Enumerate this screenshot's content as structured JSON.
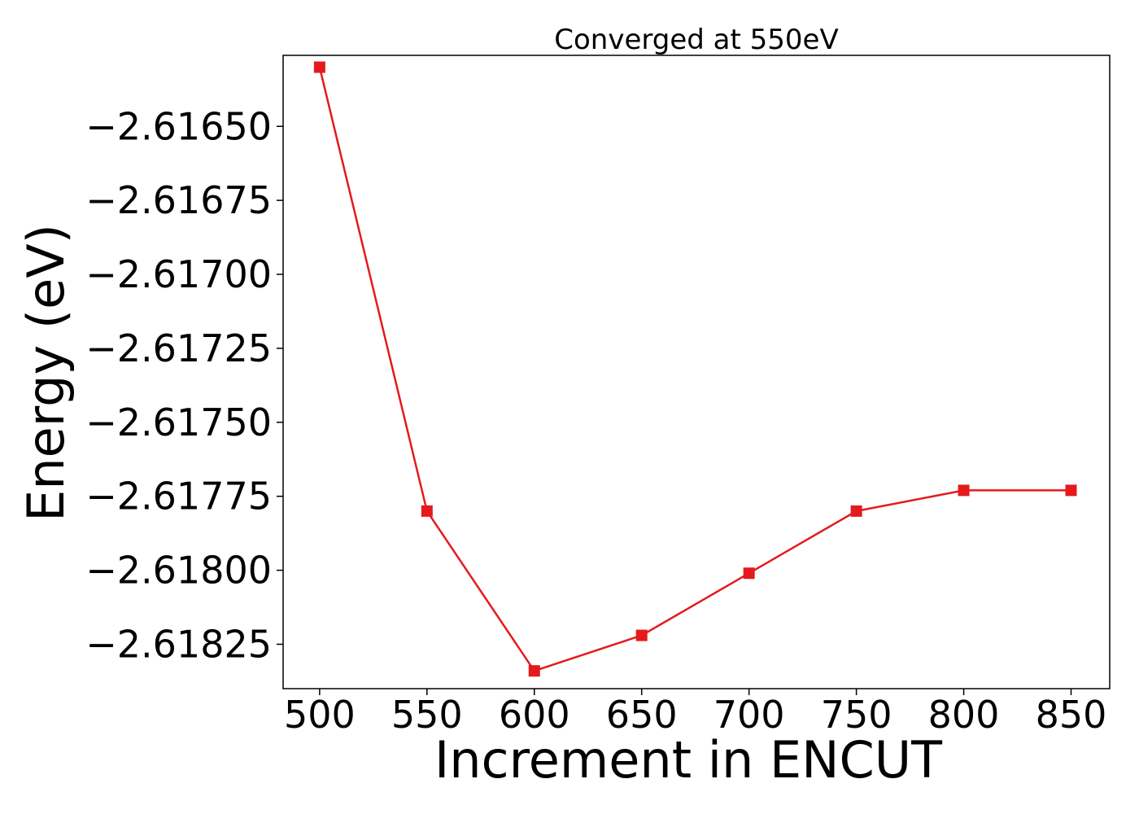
{
  "chart_data": {
    "type": "line",
    "title": "Converged at 550eV",
    "xlabel": "Increment in ENCUT",
    "ylabel": "Energy (eV)",
    "x": [
      500,
      550,
      600,
      650,
      700,
      750,
      800,
      850
    ],
    "series": [
      {
        "values": [
          -2.6163,
          -2.6178,
          -2.61834,
          -2.61822,
          -2.61801,
          -2.6178,
          -2.61773,
          -2.61773
        ],
        "color": "#e41a1c",
        "marker": "square"
      }
    ],
    "xlim": [
      483,
      868
    ],
    "ylim": [
      -2.6184,
      -2.61626
    ],
    "xticks": [
      500,
      550,
      600,
      650,
      700,
      750,
      800,
      850
    ],
    "xtick_labels": [
      "500",
      "550",
      "600",
      "650",
      "700",
      "750",
      "800",
      "850"
    ],
    "yticks": [
      -2.6165,
      -2.61675,
      -2.617,
      -2.61725,
      -2.6175,
      -2.61775,
      -2.618,
      -2.61825
    ],
    "ytick_labels": [
      "−2.61650",
      "−2.61675",
      "−2.61700",
      "−2.61725",
      "−2.61750",
      "−2.61775",
      "−2.61800",
      "−2.61825"
    ],
    "grid": false,
    "legend": "none"
  }
}
